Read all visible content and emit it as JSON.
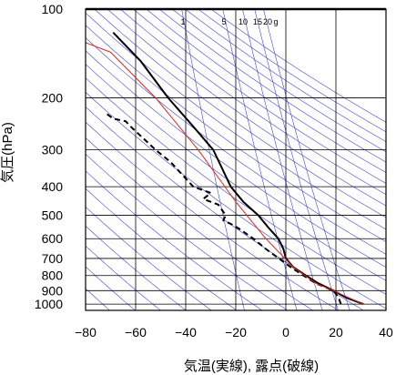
{
  "chart_data": {
    "type": "line",
    "xlabel": "気温(実線), 露点(破線)",
    "ylabel": "気圧(hPa)",
    "xlim": [
      -80,
      40
    ],
    "ylim": [
      1050,
      100
    ],
    "y_scale": "log",
    "grid": true,
    "x_ticks": [
      "−80",
      "−60",
      "−40",
      "−20",
      "0",
      "20",
      "40"
    ],
    "x_tick_values": [
      -80,
      -60,
      -40,
      -20,
      0,
      20,
      40
    ],
    "y_ticks": [
      "100",
      "200",
      "300",
      "400",
      "500",
      "600",
      "700",
      "800",
      "900",
      "1000"
    ],
    "y_tick_values": [
      100,
      200,
      300,
      400,
      500,
      600,
      700,
      800,
      900,
      1000
    ],
    "mixing_ratio_labels": [
      "1",
      "5",
      "10",
      "15",
      "20",
      "g"
    ],
    "mixing_ratio_values": [
      1,
      5,
      10,
      15,
      20
    ],
    "series": [
      {
        "style": "solid",
        "x": [
          31,
          24,
          19,
          13,
          8,
          3,
          0,
          -1,
          -3,
          -7,
          -11,
          -17,
          -22,
          -29,
          -37,
          -47,
          -58,
          -67,
          -69
        ],
        "y": [
          1000,
          950,
          900,
          850,
          800,
          750,
          700,
          650,
          600,
          550,
          500,
          450,
          400,
          300,
          250,
          200,
          150,
          125,
          120
        ]
      },
      {
        "style": "dashed",
        "x": [
          22,
          21,
          19,
          12,
          7,
          2,
          -8,
          -13,
          -18,
          -21,
          -25,
          -24,
          -27,
          -33,
          -30,
          -37,
          -46,
          -52,
          -62,
          -64,
          -69,
          -72
        ],
        "y": [
          1000,
          950,
          900,
          850,
          800,
          750,
          650,
          600,
          560,
          540,
          520,
          500,
          460,
          440,
          420,
          400,
          330,
          300,
          250,
          240,
          235,
          225
        ]
      },
      {
        "style": "reference",
        "x": [
          31,
          25,
          19,
          12,
          3,
          -8,
          -20,
          -35,
          -52,
          -70,
          -80
        ],
        "y": [
          1000,
          950,
          900,
          850,
          750,
          600,
          450,
          300,
          200,
          140,
          130
        ]
      }
    ],
    "colors": {
      "temperature": "#000000",
      "dewpoint": "#000000",
      "reference": "#e8251a",
      "grid": "#3c46e0"
    }
  }
}
